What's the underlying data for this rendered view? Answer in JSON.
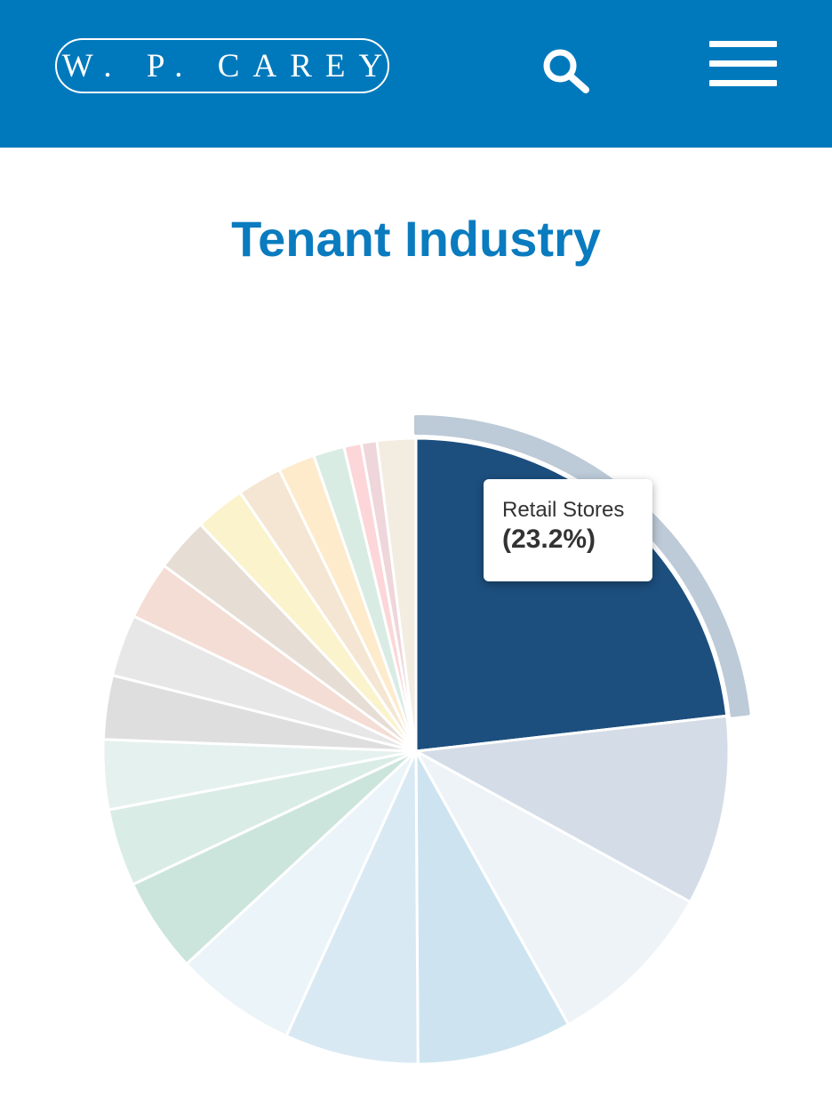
{
  "header": {
    "logo_text": "W. P. CAREY",
    "search_icon": "search-icon",
    "menu_icon": "menu-icon",
    "background": "#0079bc"
  },
  "main": {
    "title": "Tenant Industry"
  },
  "tooltip": {
    "label": "Retail Stores",
    "value": "(23.2%)"
  },
  "chart_data": {
    "type": "pie",
    "title": "Tenant Industry",
    "start_angle_deg": 0,
    "direction": "clockwise",
    "highlighted_index": 0,
    "slices": [
      {
        "value": 23.2,
        "color": "#1c4f7e",
        "label": "Retail Stores"
      },
      {
        "value": 9.8,
        "color": "#d4dde7"
      },
      {
        "value": 8.9,
        "color": "#eef3f7"
      },
      {
        "value": 8.0,
        "color": "#cde4f0"
      },
      {
        "value": 6.9,
        "color": "#d9e9f4"
      },
      {
        "value": 6.3,
        "color": "#ebf4f9"
      },
      {
        "value": 4.9,
        "color": "#cce5dc"
      },
      {
        "value": 4.0,
        "color": "#d9ece6"
      },
      {
        "value": 3.6,
        "color": "#e5f1ee"
      },
      {
        "value": 3.3,
        "color": "#dedede"
      },
      {
        "value": 3.2,
        "color": "#e7e7e7"
      },
      {
        "value": 3.0,
        "color": "#f4ddd4"
      },
      {
        "value": 2.8,
        "color": "#e6ddd4"
      },
      {
        "value": 2.6,
        "color": "#fbf3cc"
      },
      {
        "value": 2.3,
        "color": "#f4e6d2"
      },
      {
        "value": 1.9,
        "color": "#fdebcc"
      },
      {
        "value": 1.6,
        "color": "#d9ece4"
      },
      {
        "value": 0.9,
        "color": "#fcd6d8"
      },
      {
        "value": 0.8,
        "color": "#eed6da"
      },
      {
        "value": 2.0,
        "color": "#f3ece0"
      }
    ]
  }
}
